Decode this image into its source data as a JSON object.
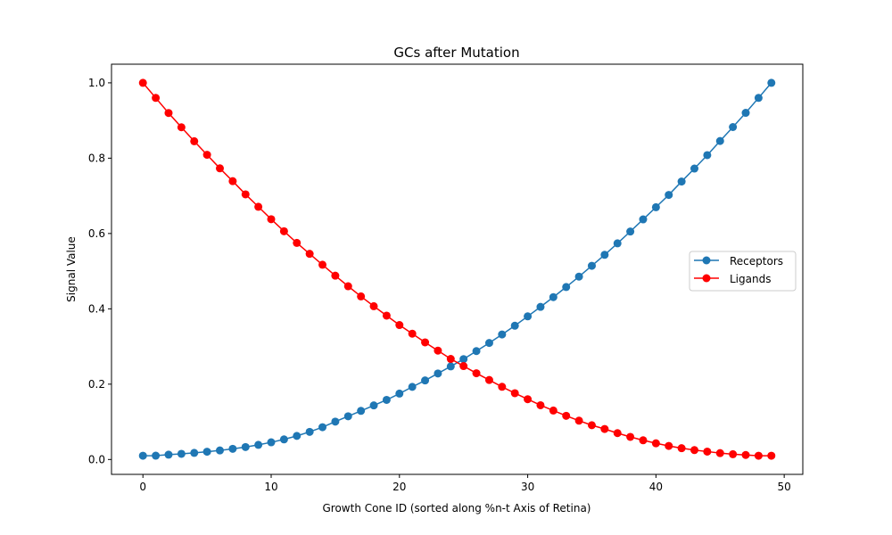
{
  "chart_data": {
    "type": "line",
    "title": "GCs after Mutation",
    "xlabel": "Growth Cone ID (sorted along %n-t Axis of Retina)",
    "ylabel": "Signal Value",
    "xlim": [
      -2.45,
      51.45
    ],
    "ylim": [
      -0.0395,
      1.0495
    ],
    "xticks": [
      0,
      10,
      20,
      30,
      40,
      50
    ],
    "xtick_labels": [
      "0",
      "10",
      "20",
      "30",
      "40",
      "50"
    ],
    "yticks": [
      0.0,
      0.2,
      0.4,
      0.6,
      0.8,
      1.0
    ],
    "ytick_labels": [
      "0.0",
      "0.2",
      "0.4",
      "0.6",
      "0.8",
      "1.0"
    ],
    "grid": false,
    "legend_position": "center-right",
    "x": [
      0,
      1,
      2,
      3,
      4,
      5,
      6,
      7,
      8,
      9,
      10,
      11,
      12,
      13,
      14,
      15,
      16,
      17,
      18,
      19,
      20,
      21,
      22,
      23,
      24,
      25,
      26,
      27,
      28,
      29,
      30,
      31,
      32,
      33,
      34,
      35,
      36,
      37,
      38,
      39,
      40,
      41,
      42,
      43,
      44,
      45,
      46,
      47,
      48,
      49
    ],
    "series": [
      {
        "name": "Receptors",
        "color": "#1f77b4",
        "marker": "circle",
        "values": [
          0.01,
          0.0101,
          0.0128,
          0.015,
          0.0176,
          0.0206,
          0.0241,
          0.0283,
          0.0331,
          0.0389,
          0.0456,
          0.0534,
          0.0626,
          0.0733,
          0.0858,
          0.1006,
          0.1148,
          0.1291,
          0.1436,
          0.1582,
          0.1749,
          0.1928,
          0.2099,
          0.2284,
          0.2472,
          0.2666,
          0.2878,
          0.3094,
          0.3319,
          0.3552,
          0.38,
          0.4052,
          0.4311,
          0.4579,
          0.4856,
          0.5142,
          0.5434,
          0.5739,
          0.6053,
          0.6375,
          0.6698,
          0.7025,
          0.738,
          0.7725,
          0.8081,
          0.8456,
          0.8826,
          0.9204,
          0.96,
          1.0
        ]
      },
      {
        "name": "Ligands",
        "color": "#ff0000",
        "marker": "circle",
        "values": [
          1.0,
          0.96,
          0.92,
          0.882,
          0.845,
          0.809,
          0.773,
          0.739,
          0.704,
          0.671,
          0.638,
          0.606,
          0.575,
          0.546,
          0.517,
          0.488,
          0.46,
          0.433,
          0.407,
          0.382,
          0.357,
          0.334,
          0.311,
          0.289,
          0.267,
          0.248,
          0.229,
          0.211,
          0.193,
          0.176,
          0.16,
          0.144,
          0.13,
          0.116,
          0.103,
          0.091,
          0.081,
          0.07,
          0.06,
          0.051,
          0.043,
          0.036,
          0.03,
          0.025,
          0.021,
          0.017,
          0.014,
          0.012,
          0.01,
          0.01
        ]
      }
    ]
  }
}
